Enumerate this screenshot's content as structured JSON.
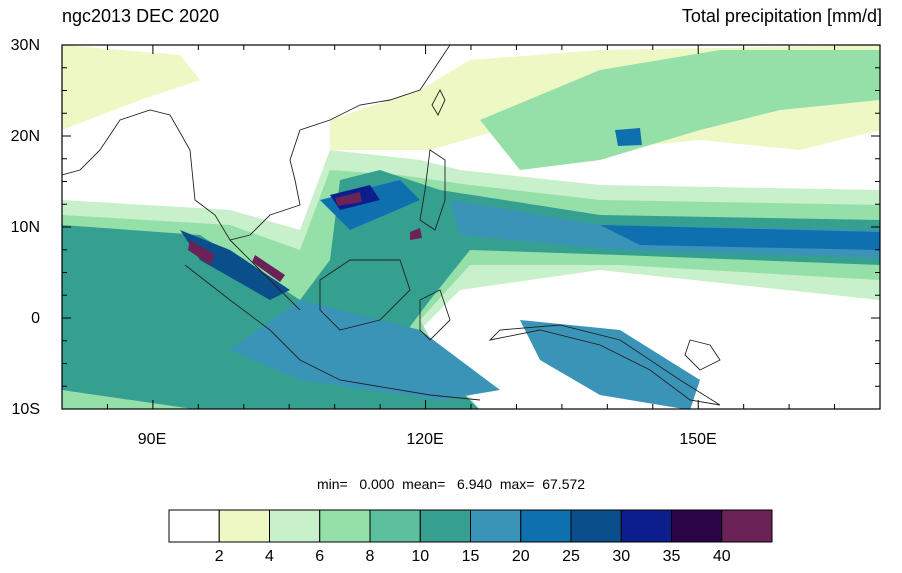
{
  "header": {
    "left_title": "ngc2013 DEC 2020",
    "right_title": "Total precipitation [mm/d]"
  },
  "map": {
    "lat_labels": [
      "30N",
      "20N",
      "10N",
      "0",
      "10S"
    ],
    "lon_labels": [
      "90E",
      "120E",
      "150E"
    ],
    "lon_range": [
      80,
      170
    ],
    "lat_range": [
      -10,
      30
    ]
  },
  "stats": {
    "text": "min=   0.000  mean=   6.940  max=  67.572"
  },
  "colorbar": {
    "levels": [
      "2",
      "4",
      "6",
      "8",
      "10",
      "15",
      "20",
      "25",
      "30",
      "35",
      "40"
    ],
    "colors": [
      "#ffffff",
      "#edf8c4",
      "#c7f0cb",
      "#94e0a8",
      "#5cbf9d",
      "#35a08f",
      "#3a94b8",
      "#0f70af",
      "#0a4f8c",
      "#0c1e8c",
      "#2b0447",
      "#6b2256"
    ]
  }
}
